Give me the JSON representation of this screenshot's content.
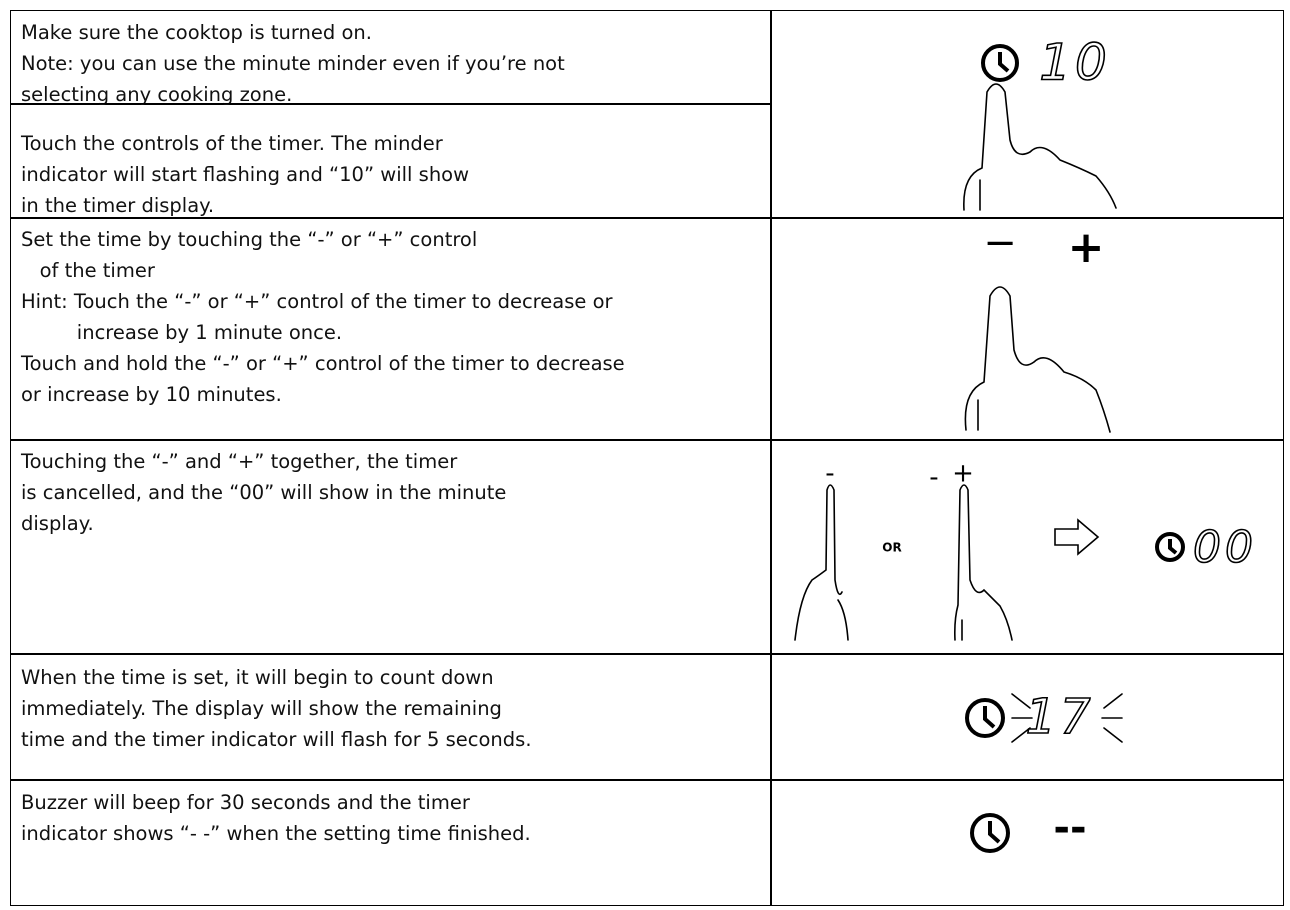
{
  "rows": [
    {
      "lines": [
        "Make sure the cooktop is turned on.",
        "Note: you can use the minute minder even if you’re not",
        "selecting any cooking zone."
      ]
    },
    {
      "lines": [
        "Touch the controls of the timer. The minder",
        "indicator will start flashing and “10” will show",
        "in the timer display."
      ]
    },
    {
      "lines": [
        "Set the time by touching the “-” or “+” control",
        "   of the timer",
        "Hint: Touch the “-” or “+” control of the timer to decrease or",
        "         increase by 1 minute once.",
        "Touch and hold the “-” or “+” control of the timer to decrease",
        "or increase by 10 minutes."
      ]
    },
    {
      "lines": [
        "Touching the “-” and “+” together, the timer",
        "is cancelled, and the “00” will show in the minute",
        "display."
      ]
    },
    {
      "lines": [
        "When the time is set, it will begin to count down",
        "immediately. The display will show the remaining",
        "time and the timer indicator will flash for 5 seconds."
      ]
    },
    {
      "lines": [
        "Buzzer will beep for 30 seconds and the timer",
        "indicator shows “- -” when the setting time finished."
      ]
    }
  ],
  "illustrations": {
    "start_display": "10",
    "minus": "−",
    "plus": "+",
    "cancel_minus_a": "-",
    "or": "OR",
    "cancel_minus_b": "-",
    "cancel_plus": "+",
    "cancel_display": "00",
    "countdown_display": "17",
    "finished_display": "--"
  }
}
